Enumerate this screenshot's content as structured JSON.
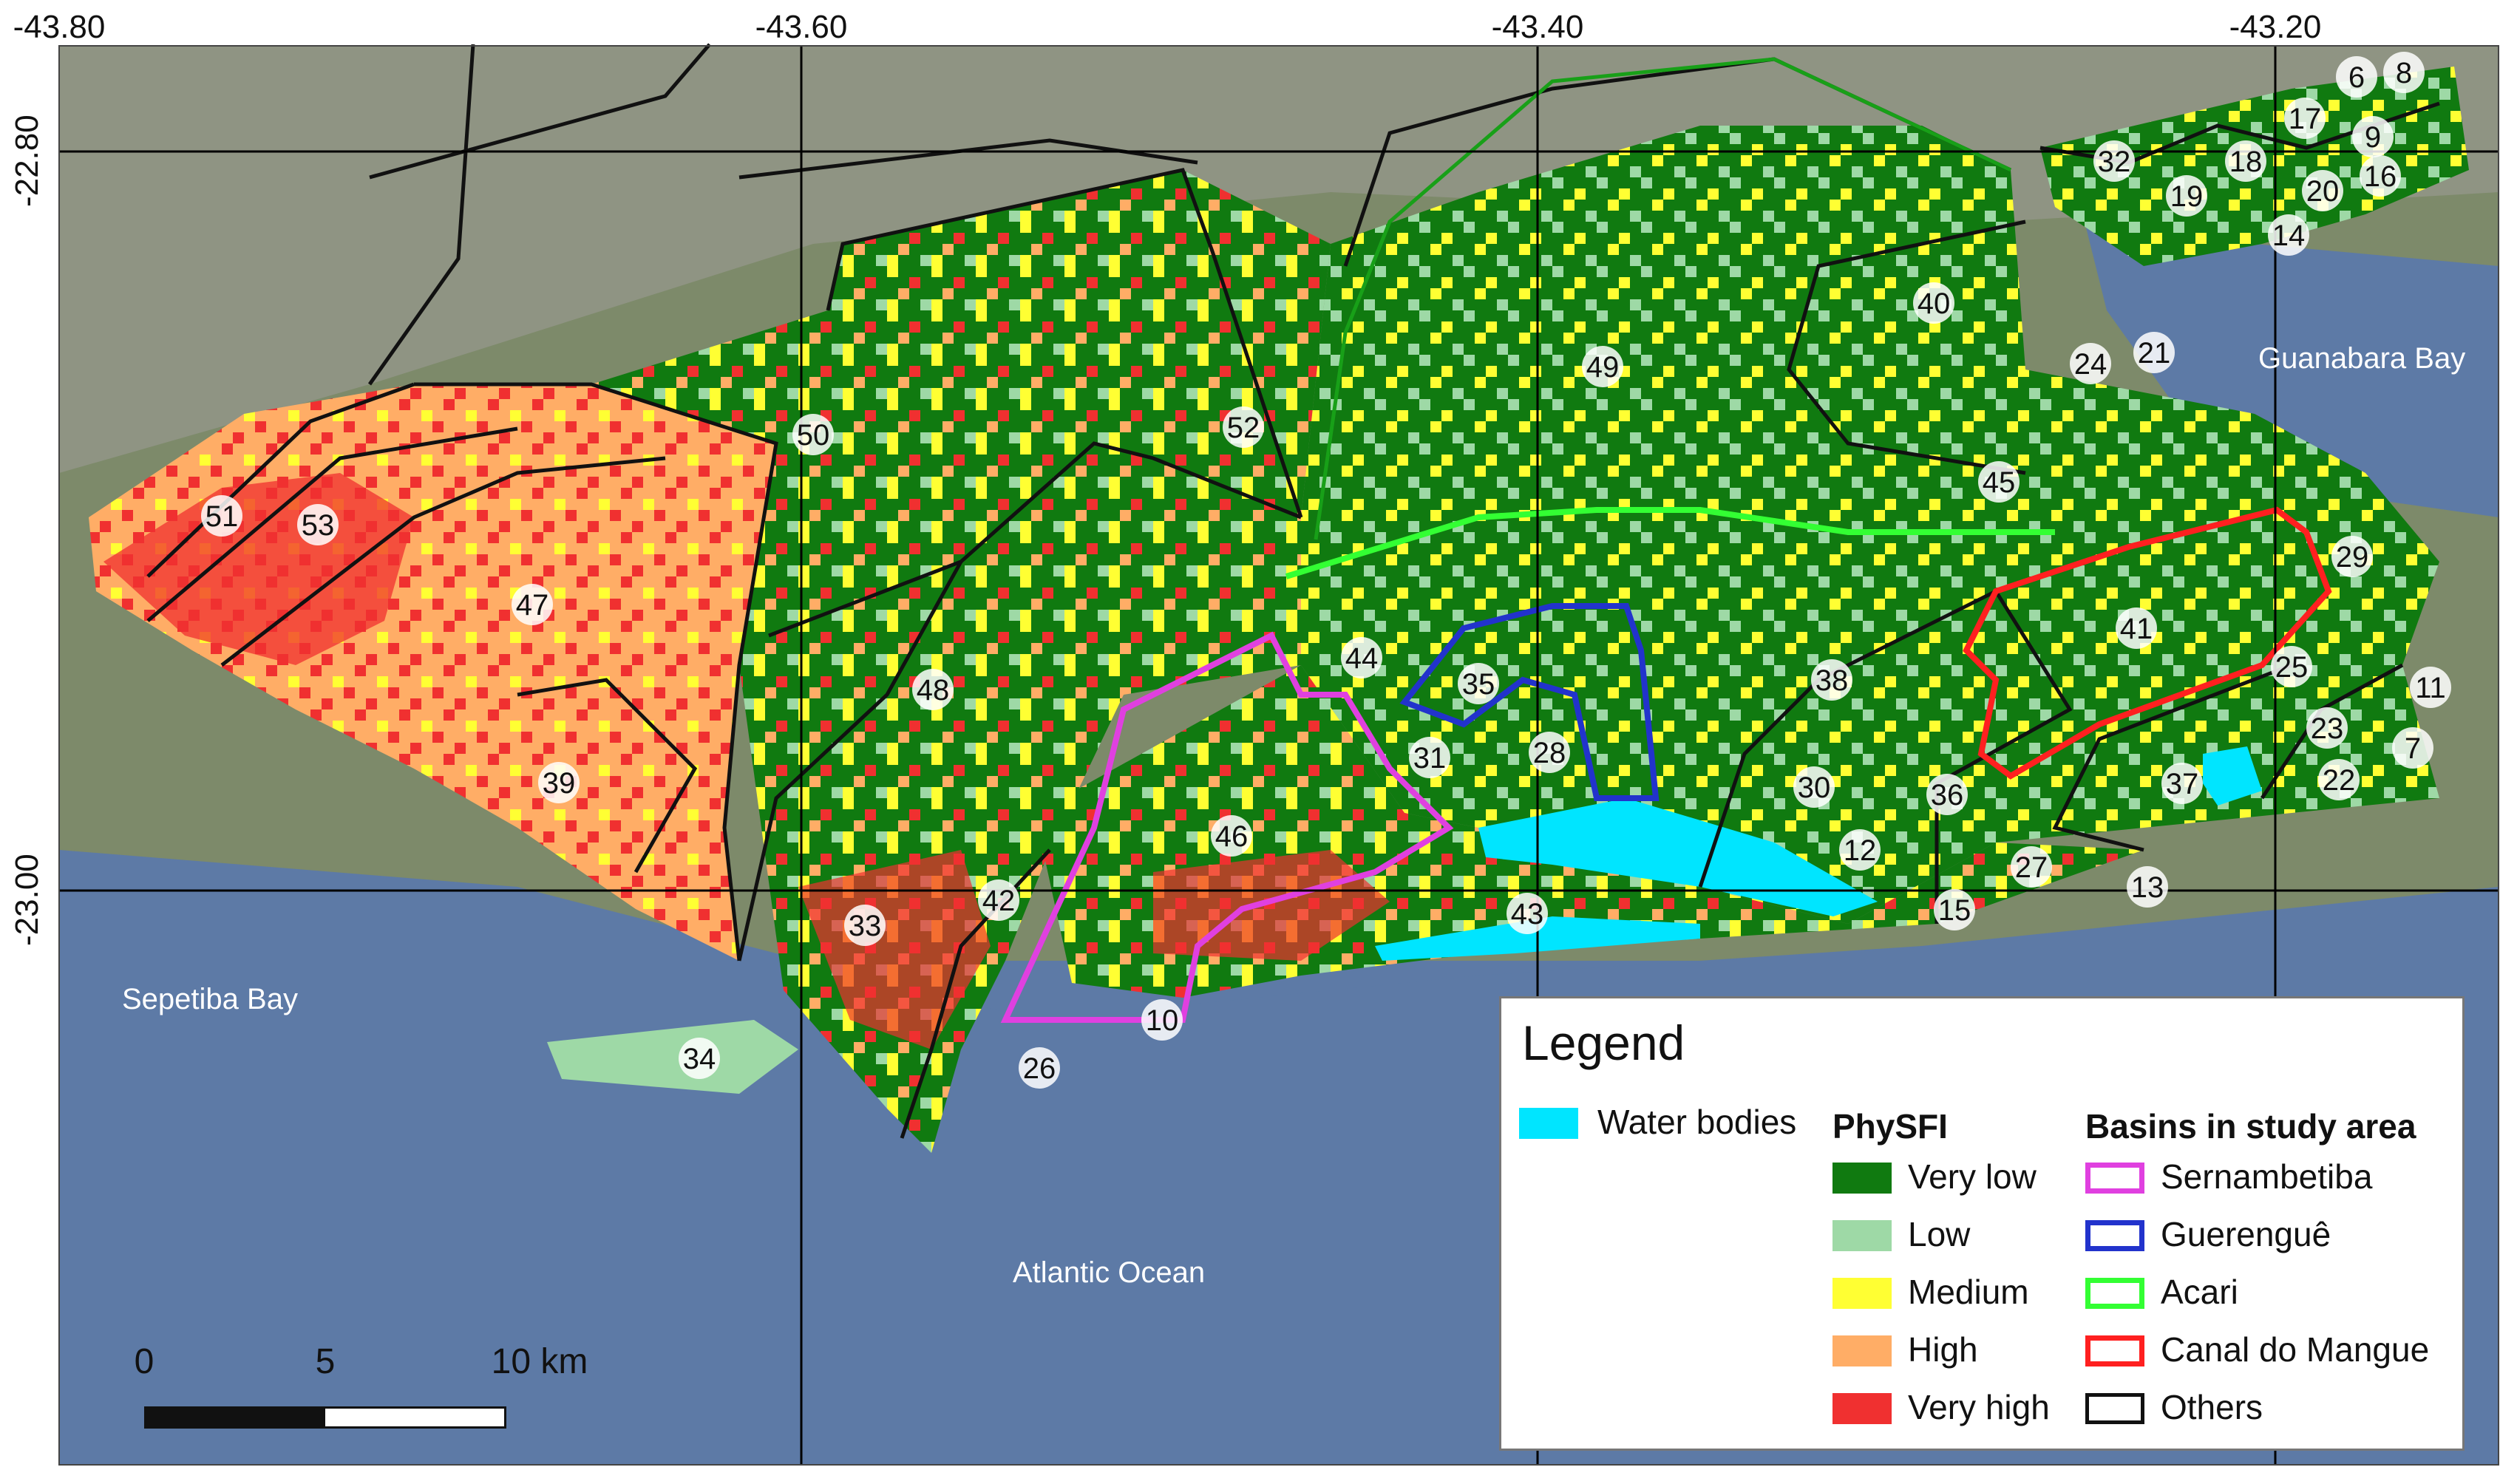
{
  "coordinates": {
    "lon_top": [
      "-43.80",
      "-43.60",
      "-43.40",
      "-43.20"
    ],
    "lat_left": [
      "-22.80",
      "-23.00"
    ]
  },
  "places": {
    "sepetiba_bay": "Sepetiba Bay",
    "guanabara_bay": "Guanabara Bay",
    "atlantic_ocean": "Atlantic Ocean"
  },
  "basin_numbers": [
    "6",
    "8",
    "17",
    "9",
    "18",
    "32",
    "16",
    "19",
    "20",
    "14",
    "40",
    "24",
    "21",
    "49",
    "50",
    "52",
    "45",
    "51",
    "53",
    "47",
    "41",
    "29",
    "44",
    "35",
    "38",
    "48",
    "25",
    "11",
    "28",
    "31",
    "30",
    "36",
    "39",
    "46",
    "23",
    "7",
    "37",
    "22",
    "12",
    "27",
    "13",
    "42",
    "43",
    "15",
    "33",
    "10",
    "34",
    "26"
  ],
  "legend": {
    "title": "Legend",
    "water_label": "Water bodies",
    "physfi_header": "PhySFI",
    "physfi": [
      {
        "label": "Very low",
        "color": "#107a10"
      },
      {
        "label": "Low",
        "color": "#9ed9a6"
      },
      {
        "label": "Medium",
        "color": "#ffff33"
      },
      {
        "label": "High",
        "color": "#ffad66"
      },
      {
        "label": "Very high",
        "color": "#f03030"
      }
    ],
    "basins_header": "Basins in study area",
    "basins": [
      {
        "label": "Sernambetiba",
        "color": "#e040e0"
      },
      {
        "label": "Guerenguê",
        "color": "#2233cc"
      },
      {
        "label": "Acari",
        "color": "#33ff33"
      },
      {
        "label": "Canal do Mangue",
        "color": "#ff2020"
      },
      {
        "label": "Others",
        "color": "#111111"
      }
    ],
    "water_color": "#00e5ff"
  },
  "scale": {
    "labels": [
      "0",
      "5",
      "10 km"
    ]
  },
  "colors": {
    "ocean": "#5d7aa6",
    "land_satellite": "#7d8a6a",
    "very_low": "#107a10",
    "low": "#9ed9a6",
    "medium": "#ffff33",
    "high": "#ffad66",
    "very_high": "#f03030",
    "water": "#00e5ff"
  }
}
